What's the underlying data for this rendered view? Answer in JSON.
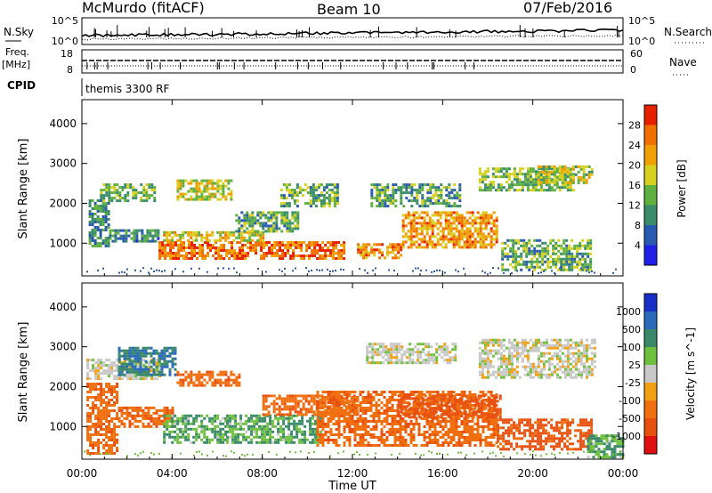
{
  "header": {
    "site": "McMurdo (fitACF)",
    "beam": "Beam 10",
    "date": "07/Feb/2016"
  },
  "noise_panel": {
    "left_label": "N.Sky",
    "right_label": "N.Search",
    "left_ticks": [
      "10^5",
      "10^0"
    ],
    "right_ticks": [
      "10^5",
      "10^0"
    ]
  },
  "freq_panel": {
    "left_label_1": "Freq.",
    "left_label_2": "[MHz]",
    "right_label": "Nave",
    "left_ticks": [
      "18",
      "8"
    ],
    "right_ticks": [
      "60",
      "0"
    ]
  },
  "cpid": {
    "label": "CPID",
    "value": "themis 3300 RF"
  },
  "colors": {
    "power": [
      "#2020e8",
      "#2a5ab0",
      "#3a8c6a",
      "#60b040",
      "#d8d020",
      "#f0a000",
      "#f07000",
      "#e82000"
    ],
    "velocity": [
      "#1830c8",
      "#2a6ab8",
      "#3a8a6a",
      "#70c040",
      "#c8c8c8",
      "#f0a010",
      "#f07010",
      "#e85010",
      "#e01010"
    ]
  },
  "chart_data": [
    {
      "type": "heatmap",
      "title": "Power",
      "xlabel": "",
      "ylabel": "Slant Range [km]",
      "x_ticks": [
        "00:00",
        "04:00",
        "08:00",
        "12:00",
        "16:00",
        "20:00",
        "00:00"
      ],
      "y_ticks": [
        "1000",
        "2000",
        "3000",
        "4000"
      ],
      "ylim": [
        180,
        4600
      ],
      "xlim_hours": [
        0,
        24
      ],
      "colorbar": {
        "label": "Power [dB]",
        "ticks": [
          "4",
          "8",
          "12",
          "16",
          "20",
          "24",
          "28"
        ],
        "range": [
          0,
          32
        ]
      },
      "bands": [
        {
          "t0": 0.3,
          "t1": 1.2,
          "r0": 900,
          "r1": 2100,
          "value": 10
        },
        {
          "t0": 0.8,
          "t1": 3.2,
          "r0": 2050,
          "r1": 2500,
          "value": 14
        },
        {
          "t0": 1.2,
          "t1": 3.4,
          "r0": 1050,
          "r1": 1350,
          "value": 9
        },
        {
          "t0": 3.4,
          "t1": 11.6,
          "r0": 600,
          "r1": 1050,
          "value": 26
        },
        {
          "t0": 3.6,
          "t1": 8.0,
          "r0": 1050,
          "r1": 1300,
          "value": 19
        },
        {
          "t0": 4.2,
          "t1": 6.6,
          "r0": 2100,
          "r1": 2600,
          "value": 18
        },
        {
          "t0": 6.8,
          "t1": 9.6,
          "r0": 1300,
          "r1": 1800,
          "value": 12
        },
        {
          "t0": 8.8,
          "t1": 11.4,
          "r0": 1900,
          "r1": 2500,
          "value": 13
        },
        {
          "t0": 12.2,
          "t1": 14.2,
          "r0": 600,
          "r1": 1000,
          "value": 24
        },
        {
          "t0": 12.8,
          "t1": 16.8,
          "r0": 1900,
          "r1": 2500,
          "value": 12
        },
        {
          "t0": 14.2,
          "t1": 18.4,
          "r0": 900,
          "r1": 1800,
          "value": 23
        },
        {
          "t0": 17.6,
          "t1": 21.8,
          "r0": 2300,
          "r1": 2900,
          "value": 14
        },
        {
          "t0": 18.6,
          "t1": 22.6,
          "r0": 300,
          "r1": 1100,
          "value": 13
        },
        {
          "t0": 20.2,
          "t1": 22.6,
          "r0": 2500,
          "r1": 2950,
          "value": 17
        }
      ]
    },
    {
      "type": "heatmap",
      "title": "Velocity",
      "xlabel": "Time UT",
      "ylabel": "Slant Range [km]",
      "x_ticks": [
        "00:00",
        "04:00",
        "08:00",
        "12:00",
        "16:00",
        "20:00",
        "00:00"
      ],
      "y_ticks": [
        "1000",
        "2000",
        "3000",
        "4000"
      ],
      "ylim": [
        180,
        4600
      ],
      "xlim_hours": [
        0,
        24
      ],
      "colorbar": {
        "label": "Velocity [m s^-1]",
        "ticks": [
          "1000",
          "500",
          "100",
          "25",
          "-25",
          "-100",
          "-500",
          "-1000"
        ]
      },
      "bands": [
        {
          "t0": 0.2,
          "t1": 1.6,
          "r0": 300,
          "r1": 2100,
          "value": -250
        },
        {
          "t0": 0.2,
          "t1": 3.4,
          "r0": 2200,
          "r1": 2700,
          "value": 0
        },
        {
          "t0": 1.6,
          "t1": 4.2,
          "r0": 2300,
          "r1": 3000,
          "value": 300
        },
        {
          "t0": 1.6,
          "t1": 4.0,
          "r0": 1000,
          "r1": 1500,
          "value": -250
        },
        {
          "t0": 3.6,
          "t1": 6.4,
          "r0": 600,
          "r1": 1300,
          "value": 60
        },
        {
          "t0": 4.2,
          "t1": 7.0,
          "r0": 2000,
          "r1": 2400,
          "value": -250
        },
        {
          "t0": 6.4,
          "t1": 10.6,
          "r0": 600,
          "r1": 1300,
          "value": 60
        },
        {
          "t0": 8.0,
          "t1": 12.2,
          "r0": 1300,
          "r1": 1800,
          "value": -250
        },
        {
          "t0": 10.4,
          "t1": 18.4,
          "r0": 500,
          "r1": 1900,
          "value": -250
        },
        {
          "t0": 14.0,
          "t1": 18.6,
          "r0": 1200,
          "r1": 1800,
          "value": -400
        },
        {
          "t0": 18.4,
          "t1": 22.6,
          "r0": 400,
          "r1": 1200,
          "value": -400
        },
        {
          "t0": 17.6,
          "t1": 22.8,
          "r0": 2200,
          "r1": 3200,
          "value": 0
        },
        {
          "t0": 22.4,
          "t1": 24.0,
          "r0": 250,
          "r1": 800,
          "value": 60
        },
        {
          "t0": 12.6,
          "t1": 16.6,
          "r0": 2600,
          "r1": 3100,
          "value": 0
        }
      ]
    }
  ]
}
